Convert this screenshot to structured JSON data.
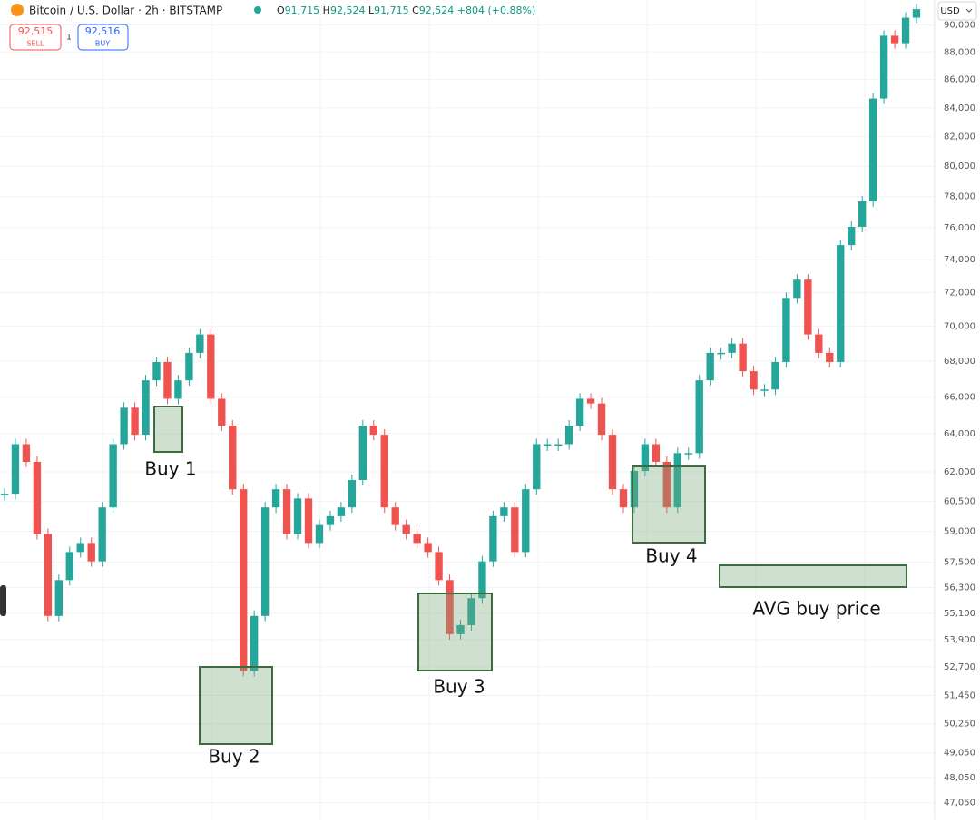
{
  "header": {
    "symbol": "Bitcoin / U.S. Dollar · 2h · BITSTAMP",
    "ohlc": [
      {
        "label": "O",
        "value": "91,715"
      },
      {
        "label": "H",
        "value": "92,524"
      },
      {
        "label": "L",
        "value": "91,715"
      },
      {
        "label": "C",
        "value": "92,524"
      }
    ],
    "change": "+804 (+0.88%)",
    "sell_price": "92,515",
    "sell_label": "SELL",
    "quantity": "1",
    "buy_price": "92,516",
    "buy_label": "BUY",
    "currency": "USD"
  },
  "chart_data": {
    "type": "candle-path",
    "log_scale": true,
    "grid": true,
    "up_color": "#26a69a",
    "down_color": "#ef5350",
    "ylim": [
      46400,
      91900
    ],
    "yticks": [
      {
        "value": 90000,
        "label": "90,000"
      },
      {
        "value": 88000,
        "label": "88,000"
      },
      {
        "value": 86000,
        "label": "86,000"
      },
      {
        "value": 84000,
        "label": "84,000"
      },
      {
        "value": 82000,
        "label": "82,000"
      },
      {
        "value": 80000,
        "label": "80,000"
      },
      {
        "value": 78000,
        "label": "78,000"
      },
      {
        "value": 76000,
        "label": "76,000"
      },
      {
        "value": 74000,
        "label": "74,000"
      },
      {
        "value": 72000,
        "label": "72,000"
      },
      {
        "value": 70000,
        "label": "70,000"
      },
      {
        "value": 68000,
        "label": "68,000"
      },
      {
        "value": 66000,
        "label": "66,000"
      },
      {
        "value": 64000,
        "label": "64,000"
      },
      {
        "value": 62000,
        "label": "62,000"
      },
      {
        "value": 60500,
        "label": "60,500"
      },
      {
        "value": 59000,
        "label": "59,000"
      },
      {
        "value": 57500,
        "label": "57,500"
      },
      {
        "value": 56300,
        "label": "56,300"
      },
      {
        "value": 55100,
        "label": "55,100"
      },
      {
        "value": 53900,
        "label": "53,900"
      },
      {
        "value": 52700,
        "label": "52,700"
      },
      {
        "value": 51450,
        "label": "51,450"
      },
      {
        "value": 50250,
        "label": "50,250"
      },
      {
        "value": 49050,
        "label": "49,050"
      },
      {
        "value": 48050,
        "label": "48,050"
      },
      {
        "value": 47050,
        "label": "47,050"
      }
    ],
    "values": [
      60880,
      63450,
      62520,
      58870,
      54980,
      56650,
      57990,
      58430,
      57540,
      60190,
      63450,
      65410,
      63950,
      66920,
      67950,
      65900,
      66920,
      68470,
      69530,
      65900,
      64440,
      61110,
      52510,
      54980,
      60190,
      61110,
      58870,
      60640,
      58430,
      59310,
      59750,
      60190,
      61580,
      64440,
      63950,
      60190,
      59310,
      58870,
      58430,
      57990,
      56650,
      54150,
      54560,
      55800,
      57540,
      59750,
      60190,
      57990,
      61110,
      63450,
      63450,
      63450,
      64440,
      65900,
      65640,
      63950,
      61110,
      60190,
      62050,
      63450,
      62520,
      60190,
      62980,
      62980,
      66920,
      68470,
      68470,
      69000,
      67430,
      66410,
      66410,
      67950,
      71680,
      72780,
      69530,
      68470,
      67950,
      74910,
      76060,
      77700,
      84650,
      89200,
      88650,
      90550,
      91200
    ],
    "annotations": [
      "Buy 1",
      "Buy 2",
      "Buy 3",
      "Buy 4",
      "AVG buy price"
    ]
  }
}
